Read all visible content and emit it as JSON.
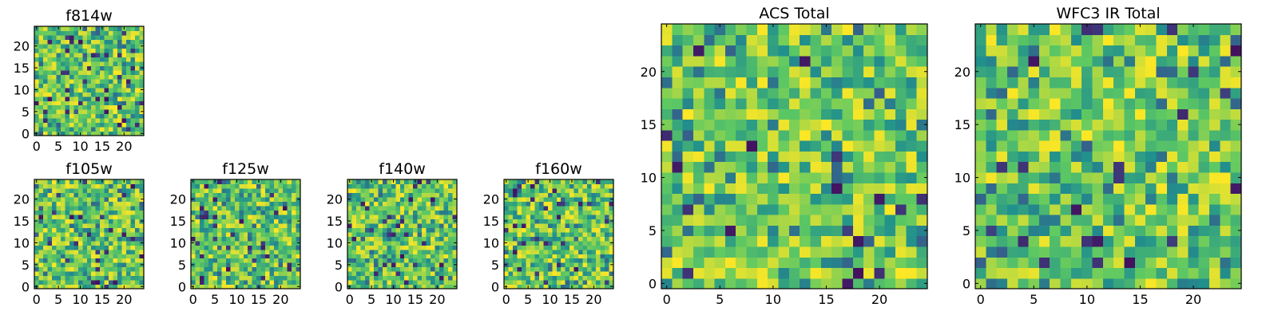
{
  "chart_data": [
    {
      "type": "heatmap",
      "id": "f814w",
      "title": "f814w",
      "xlim": [
        -0.5,
        24.5
      ],
      "ylim": [
        -0.5,
        24.5
      ],
      "xticks": [
        0,
        5,
        10,
        15,
        20
      ],
      "yticks": [
        0,
        5,
        10,
        15,
        20
      ],
      "colormap": "viridis",
      "value_range": [
        0,
        1
      ],
      "seed": 814
    },
    {
      "type": "heatmap",
      "id": "f105w",
      "title": "f105w",
      "xlim": [
        -0.5,
        24.5
      ],
      "ylim": [
        -0.5,
        24.5
      ],
      "xticks": [
        0,
        5,
        10,
        15,
        20
      ],
      "yticks": [
        0,
        5,
        10,
        15,
        20
      ],
      "colormap": "viridis",
      "value_range": [
        0,
        1
      ],
      "seed": 105
    },
    {
      "type": "heatmap",
      "id": "f125w",
      "title": "f125w",
      "xlim": [
        -0.5,
        24.5
      ],
      "ylim": [
        -0.5,
        24.5
      ],
      "xticks": [
        0,
        5,
        10,
        15,
        20
      ],
      "yticks": [
        0,
        5,
        10,
        15,
        20
      ],
      "colormap": "viridis",
      "value_range": [
        0,
        1
      ],
      "seed": 125
    },
    {
      "type": "heatmap",
      "id": "f140w",
      "title": "f140w",
      "xlim": [
        -0.5,
        24.5
      ],
      "ylim": [
        -0.5,
        24.5
      ],
      "xticks": [
        0,
        5,
        10,
        15,
        20
      ],
      "yticks": [
        0,
        5,
        10,
        15,
        20
      ],
      "colormap": "viridis",
      "value_range": [
        0,
        1
      ],
      "seed": 140
    },
    {
      "type": "heatmap",
      "id": "f160w",
      "title": "f160w",
      "xlim": [
        -0.5,
        24.5
      ],
      "ylim": [
        -0.5,
        24.5
      ],
      "xticks": [
        0,
        5,
        10,
        15,
        20
      ],
      "yticks": [
        0,
        5,
        10,
        15,
        20
      ],
      "colormap": "viridis",
      "value_range": [
        0,
        1
      ],
      "seed": 160
    },
    {
      "type": "heatmap",
      "id": "acs-total",
      "title": "ACS Total",
      "xlim": [
        -0.5,
        24.5
      ],
      "ylim": [
        -0.5,
        24.5
      ],
      "xticks": [
        0,
        5,
        10,
        15,
        20
      ],
      "yticks": [
        0,
        5,
        10,
        15,
        20
      ],
      "colormap": "viridis",
      "value_range": [
        0,
        1
      ],
      "seed": 7
    },
    {
      "type": "heatmap",
      "id": "wfc3-ir-total",
      "title": "WFC3 IR Total",
      "xlim": [
        -0.5,
        24.5
      ],
      "ylim": [
        -0.5,
        24.5
      ],
      "xticks": [
        0,
        5,
        10,
        15,
        20
      ],
      "yticks": [
        0,
        5,
        10,
        15,
        20
      ],
      "colormap": "viridis",
      "value_range": [
        0,
        1
      ],
      "seed": 31
    }
  ],
  "colors": {
    "viridis": [
      "#440154",
      "#3b528b",
      "#21918c",
      "#5ec962",
      "#fde725"
    ],
    "axis": "#000000",
    "background": "#ffffff"
  }
}
